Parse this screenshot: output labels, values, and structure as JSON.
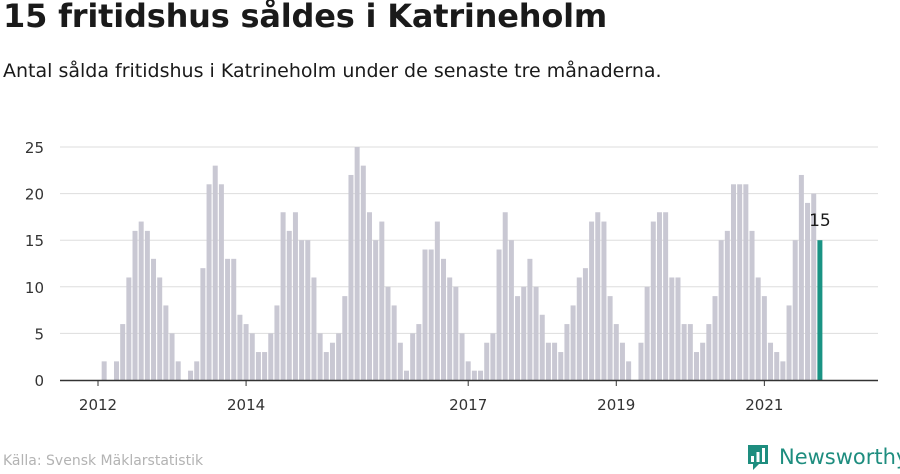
{
  "header": {
    "title": "15 fritidshus såldes i Katrineholm",
    "subtitle": "Antal sålda fritidshus i Katrineholm under de senaste tre månaderna."
  },
  "footer": {
    "source": "Källa: Svensk Mäklarstatistik",
    "brand": "Newsworthy",
    "brand_icon": "newsworthy-logo-icon"
  },
  "colors": {
    "bar": "#c9c8d3",
    "highlight": "#1a9384",
    "grid": "#dddddd",
    "axis": "#333333"
  },
  "chart_data": {
    "type": "bar",
    "title": "15 fritidshus såldes i Katrineholm",
    "subtitle": "Antal sålda fritidshus i Katrineholm under de senaste tre månaderna.",
    "xlabel": "",
    "ylabel": "",
    "ylim": [
      0,
      25
    ],
    "yticks": [
      0,
      5,
      10,
      15,
      20,
      25
    ],
    "x_tick_labels": [
      "2012",
      "2014",
      "2017",
      "2019",
      "2021"
    ],
    "grid": true,
    "series": [
      {
        "values": [
          0,
          2,
          0,
          2,
          6,
          11,
          16,
          17,
          16,
          13,
          11,
          8,
          5,
          2,
          0,
          1,
          2,
          12,
          21,
          23,
          21,
          13,
          13,
          7,
          6,
          5,
          3,
          3,
          5,
          8,
          18,
          16,
          18,
          15,
          15,
          11,
          5,
          3,
          4,
          5,
          9,
          22,
          25,
          23,
          18,
          15,
          17,
          10,
          8,
          4,
          1,
          5,
          6,
          14,
          14,
          17,
          13,
          11,
          10,
          5,
          2,
          1,
          1,
          4,
          5,
          14,
          18,
          15,
          9,
          10,
          13,
          10,
          7,
          4,
          4,
          3,
          6,
          8,
          11,
          12,
          17,
          18,
          17,
          9,
          6,
          4,
          2,
          0,
          4,
          10,
          17,
          18,
          18,
          11,
          11,
          6,
          6,
          3,
          4,
          6,
          9,
          15,
          16,
          21,
          21,
          21,
          16,
          11,
          9,
          4,
          3,
          2,
          8,
          15,
          22,
          19,
          20,
          15
        ]
      }
    ],
    "highlight": {
      "value": 15,
      "label": "15"
    }
  }
}
